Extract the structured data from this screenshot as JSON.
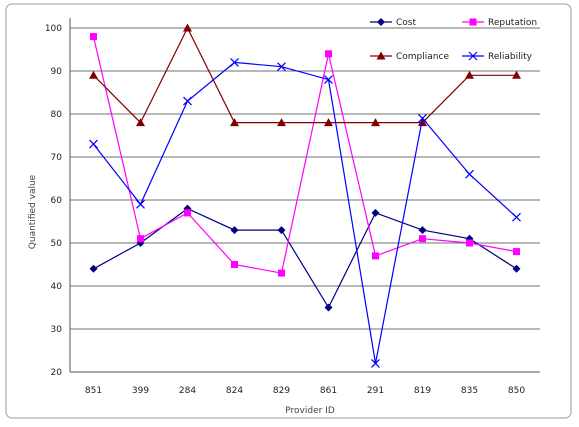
{
  "chart_data": {
    "type": "line",
    "xlabel": "Provider ID",
    "ylabel": "Quantified value",
    "categories": [
      "851",
      "399",
      "284",
      "824",
      "829",
      "861",
      "291",
      "819",
      "835",
      "850"
    ],
    "ylim": [
      20,
      100
    ],
    "yticks": [
      "20",
      "30",
      "40",
      "50",
      "60",
      "70",
      "80",
      "90",
      "100"
    ],
    "grid": true,
    "legend_position": "top-right",
    "series": [
      {
        "name": "Cost",
        "color": "#000080",
        "marker": "diamond",
        "values": [
          44,
          50,
          58,
          53,
          53,
          35,
          57,
          53,
          51,
          44
        ]
      },
      {
        "name": "Reputation",
        "color": "#ff00ff",
        "marker": "square",
        "values": [
          98,
          51,
          57,
          45,
          43,
          94,
          47,
          51,
          50,
          48
        ]
      },
      {
        "name": "Compliance",
        "color": "#800000",
        "marker": "triangle",
        "values": [
          89,
          78,
          100,
          78,
          78,
          78,
          78,
          78,
          89,
          89
        ]
      },
      {
        "name": "Reliability",
        "color": "#0000ff",
        "marker": "x",
        "values": [
          73,
          59,
          83,
          92,
          91,
          88,
          22,
          79,
          66,
          56
        ]
      }
    ]
  }
}
